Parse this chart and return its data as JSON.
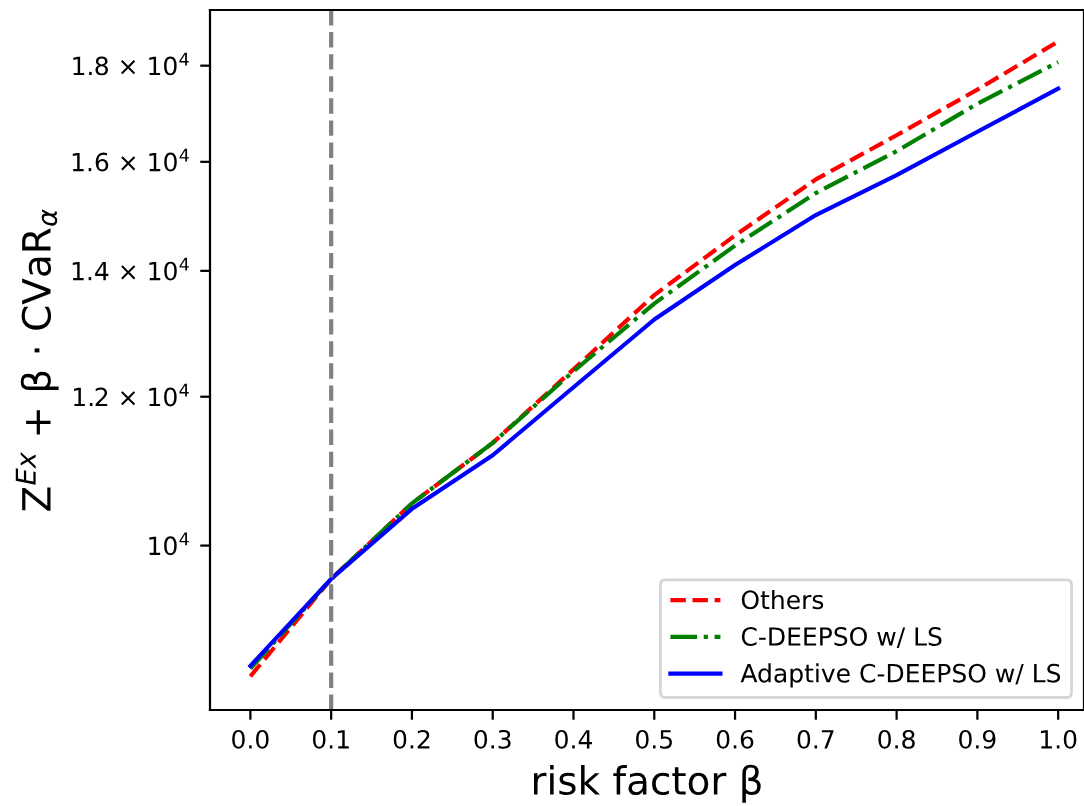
{
  "chart_data": {
    "type": "line",
    "xlabel": "risk factor β",
    "ylabel": "Z$^{Ex}$ + β · CVaR$_{α}$",
    "x": [
      0,
      0.1,
      0.2,
      0.3,
      0.4,
      0.5,
      0.6,
      0.7,
      0.8,
      0.9,
      1.0
    ],
    "series": [
      {
        "name": "Others",
        "color": "#ff0000",
        "line_style": "dashed",
        "values": [
          8520,
          9600,
          10530,
          11340,
          12410,
          13590,
          14620,
          15660,
          16530,
          17480,
          18540
        ]
      },
      {
        "name": "C-DEEPSO w/ LS",
        "color": "#008000",
        "line_style": "dashdot",
        "values": [
          8600,
          9600,
          10530,
          11340,
          12380,
          13450,
          14440,
          15400,
          16210,
          17180,
          18080
        ]
      },
      {
        "name": "Adaptive C-DEEPSO w/ LS",
        "color": "#0000ff",
        "line_style": "solid",
        "values": [
          8630,
          9600,
          10460,
          11170,
          12140,
          13190,
          14100,
          14990,
          15740,
          16600,
          17500
        ]
      }
    ],
    "log": "y",
    "xlim": [
      -0.05,
      1.032
    ],
    "ylim": [
      8176,
      19270
    ],
    "xticks": [
      {
        "value": 0,
        "label": "0.0"
      },
      0.1,
      0.2,
      0.3,
      0.4,
      0.5,
      0.6,
      0.7,
      0.8,
      0.9,
      {
        "value": 1,
        "label": "1.0"
      }
    ],
    "yticks": [
      {
        "value": 10000,
        "label": "10$^{4}$"
      },
      {
        "value": 12000,
        "label": "1.2 × 10$^{4}$"
      },
      {
        "value": 14000,
        "label": "1.4 × 10$^{4}$"
      },
      {
        "value": 16000,
        "label": "1.6 × 10$^{4}$"
      },
      {
        "value": 18000,
        "label": "1.8 × 10$^{4}$"
      }
    ],
    "ref_lines": [
      {
        "axis": "x",
        "value": 0.1,
        "color": "#808080",
        "line_style": "dashed"
      }
    ],
    "legend": "bottom right",
    "grid": false
  }
}
